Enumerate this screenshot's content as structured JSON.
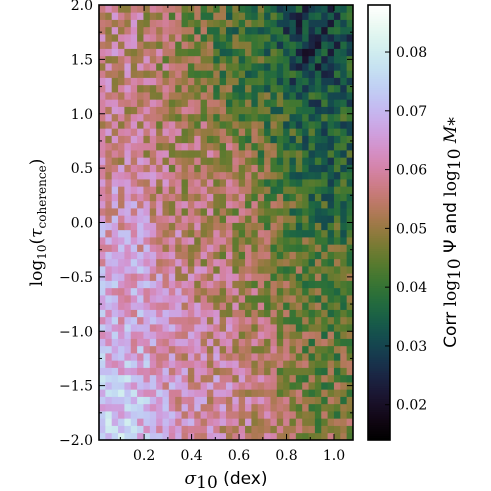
{
  "chart_data": {
    "type": "heatmap",
    "xlabel": "σ₁₀ (dex)",
    "xlabel_parts": {
      "sigma": "σ",
      "sub": "10",
      "rest": " (dex)"
    },
    "ylabel_parts": {
      "log": "log",
      "sub": "10",
      "open": "(",
      "tau": "τ",
      "tau_sub": "coherence",
      "close": ")"
    },
    "xlim": [
      0.01,
      1.08
    ],
    "ylim": [
      -2.0,
      2.0
    ],
    "xticks": [
      0.2,
      0.4,
      0.6,
      0.8,
      1.0
    ],
    "xtick_labels": [
      "0.2",
      "0.4",
      "0.6",
      "0.8",
      "1.0"
    ],
    "yticks": [
      -2.0,
      -1.5,
      -1.0,
      -0.5,
      0.0,
      0.5,
      1.0,
      1.5,
      2.0
    ],
    "ytick_labels": [
      "−2.0",
      "−1.5",
      "−1.0",
      "−0.5",
      "0.0",
      "0.5",
      "1.0",
      "1.5",
      "2.0"
    ],
    "grid": {
      "nx": 40,
      "ny": 60
    },
    "colorbar": {
      "colormap": "cubehelix",
      "range": [
        0.014,
        0.088
      ],
      "ticks": [
        0.02,
        0.03,
        0.04,
        0.05,
        0.06,
        0.07,
        0.08
      ],
      "tick_labels": [
        "0.02",
        "0.03",
        "0.04",
        "0.05",
        "0.06",
        "0.07",
        "0.08"
      ],
      "label_parts": {
        "corr": "Corr ",
        "log1": "log",
        "sub1": "10",
        "psi": " Ψ and ",
        "log2": "log",
        "sub2": "10",
        "m": " M",
        "msub": "*"
      }
    },
    "field_model": {
      "description_values": "approximate correlation map: high (~0.07-0.08) at small σ₁₀ and low log τ, ~0.06 in center, low (~0.02-0.04) at large σ₁₀ and high log τ",
      "anchors": [
        {
          "x": 0.1,
          "y": -1.8,
          "v": 0.075
        },
        {
          "x": 0.1,
          "y": -0.5,
          "v": 0.068
        },
        {
          "x": 0.1,
          "y": 1.5,
          "v": 0.058
        },
        {
          "x": 0.5,
          "y": -1.5,
          "v": 0.06
        },
        {
          "x": 0.5,
          "y": 0.5,
          "v": 0.055
        },
        {
          "x": 0.6,
          "y": 1.5,
          "v": 0.04
        },
        {
          "x": 0.9,
          "y": 1.7,
          "v": 0.025
        },
        {
          "x": 1.0,
          "y": 0.5,
          "v": 0.035
        },
        {
          "x": 1.0,
          "y": -1.0,
          "v": 0.045
        }
      ]
    }
  }
}
